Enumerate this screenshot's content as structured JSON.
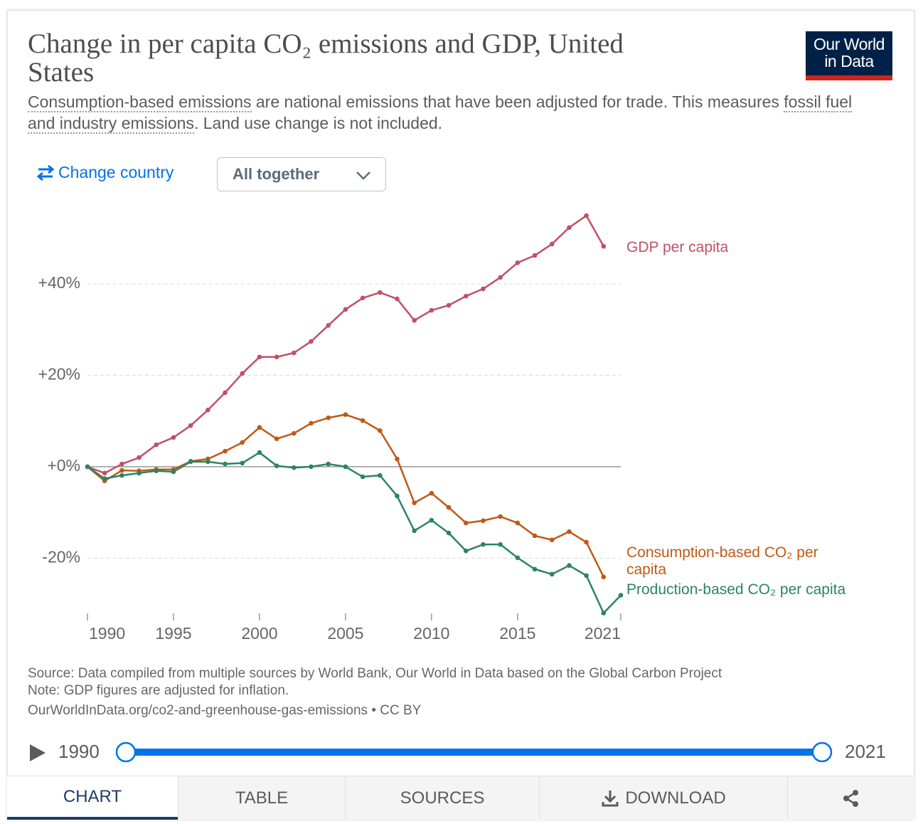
{
  "header": {
    "logo": [
      "Our World",
      "in Data"
    ]
  },
  "subtitle": [
    "Consumption-based emissions",
    " are national emissions that have been adjusted for trade. This measures ",
    "fossil fuel and industry emissions",
    ". Land use change is not included."
  ],
  "controls": {
    "change_country": "Change country",
    "dropdown": "All together"
  },
  "chart_data": {
    "type": "line",
    "title": "Change in per capita CO₂ emissions and GDP, United States",
    "x": [
      1990,
      1991,
      1992,
      1993,
      1994,
      1995,
      1996,
      1997,
      1998,
      1999,
      2000,
      2001,
      2002,
      2003,
      2004,
      2005,
      2006,
      2007,
      2008,
      2009,
      2010,
      2011,
      2012,
      2013,
      2014,
      2015,
      2016,
      2017,
      2018,
      2019,
      2020,
      2021
    ],
    "xlim": [
      1990,
      2021
    ],
    "xticks": [
      1990,
      1995,
      2000,
      2005,
      2010,
      2015,
      2021
    ],
    "ylim": [
      -33,
      56
    ],
    "yticks": [
      {
        "value": 40,
        "label": "+40%"
      },
      {
        "value": 20,
        "label": "+20%"
      },
      {
        "value": 0,
        "label": "+0%"
      },
      {
        "value": -20,
        "label": "-20%"
      }
    ],
    "grid": true,
    "series": [
      {
        "name": "GDP per capita",
        "color": "#c15065",
        "values": [
          0,
          -1.4,
          0.6,
          2.0,
          4.8,
          6.4,
          9.0,
          12.4,
          16.2,
          20.4,
          24.0,
          24.0,
          24.9,
          27.4,
          30.9,
          34.4,
          36.9,
          38.1,
          36.7,
          32.0,
          34.2,
          35.3,
          37.3,
          38.9,
          41.4,
          44.6,
          46.2,
          48.7,
          52.3,
          54.9,
          48.2,
          null
        ]
      },
      {
        "name": "Consumption-based CO₂ per capita",
        "color": "#c05917",
        "values": [
          0,
          -3.1,
          -0.8,
          -0.9,
          -0.6,
          -0.6,
          1.2,
          1.7,
          3.4,
          5.3,
          8.6,
          6.1,
          7.3,
          9.5,
          10.7,
          11.4,
          10.1,
          7.9,
          1.7,
          -7.9,
          -5.8,
          -8.9,
          -12.3,
          -11.8,
          -10.9,
          -12.3,
          -15.1,
          -16.0,
          -14.2,
          -16.5,
          -24.1,
          null
        ]
      },
      {
        "name": "Production-based CO₂ per capita",
        "color": "#2c8465",
        "values": [
          0,
          -2.6,
          -1.9,
          -1.4,
          -0.9,
          -1.1,
          1.1,
          1.1,
          0.6,
          0.8,
          3.1,
          0.2,
          -0.2,
          0,
          0.6,
          0,
          -2.2,
          -1.9,
          -6.4,
          -14.0,
          -11.7,
          -14.5,
          -18.4,
          -17.0,
          -17.0,
          -19.9,
          -22.4,
          -23.5,
          -21.6,
          -23.8,
          -32.0,
          -28.1
        ]
      }
    ]
  },
  "footer": {
    "source": "Source: Data compiled from multiple sources by World Bank, Our World in Data based on the Global Carbon Project",
    "note": "Note: GDP figures are adjusted for inflation.",
    "url": "OurWorldInData.org/co2-and-greenhouse-gas-emissions • CC BY"
  },
  "timeline": {
    "start": "1990",
    "end": "2021"
  },
  "tabs": [
    "CHART",
    "TABLE",
    "SOURCES",
    "DOWNLOAD"
  ]
}
